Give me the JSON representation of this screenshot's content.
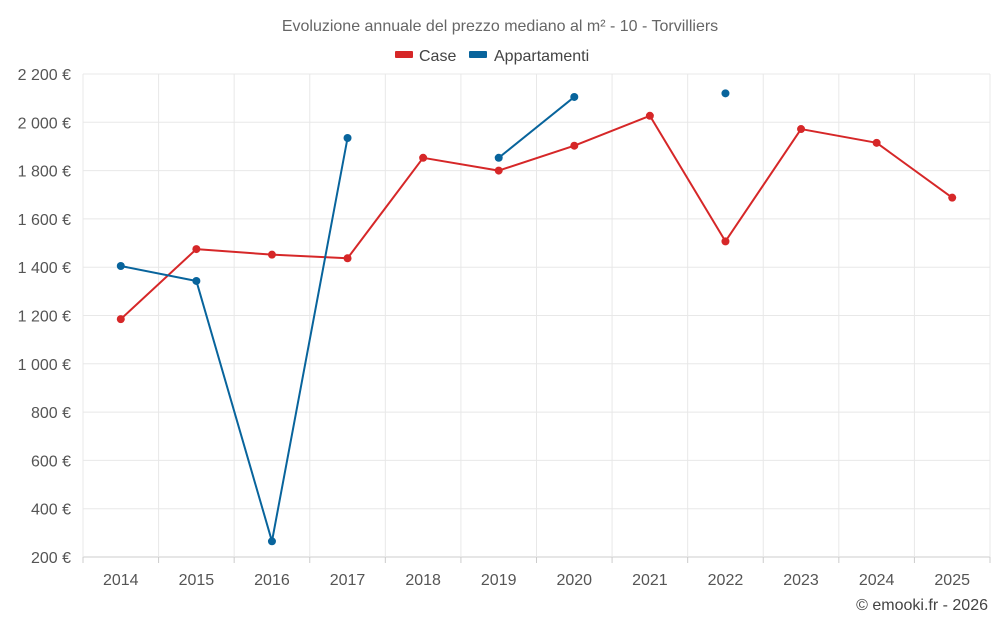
{
  "chart_data": {
    "type": "line",
    "title": "Evoluzione annuale del prezzo mediano al m² - 10 - Torvilliers",
    "categories": [
      "2014",
      "2015",
      "2016",
      "2017",
      "2018",
      "2019",
      "2020",
      "2021",
      "2022",
      "2023",
      "2024",
      "2025"
    ],
    "series": [
      {
        "name": "Case",
        "color": "#d62728",
        "values": [
          1185,
          1475,
          1452,
          1437,
          1853,
          1800,
          1903,
          2027,
          1507,
          1972,
          1915,
          1688
        ]
      },
      {
        "name": "Appartamenti",
        "color": "#08649c",
        "values": [
          1405,
          1343,
          265,
          1935,
          null,
          1853,
          2105,
          null,
          2120,
          null,
          null,
          null
        ]
      }
    ],
    "ylim": [
      200,
      2200
    ],
    "yticks": [
      200,
      400,
      600,
      800,
      1000,
      1200,
      1400,
      1600,
      1800,
      2000,
      2200
    ],
    "ytick_labels": [
      "200 €",
      "400 €",
      "600 €",
      "800 €",
      "1 000 €",
      "1 200 €",
      "1 400 €",
      "1 600 €",
      "1 800 €",
      "2 000 €",
      "2 200 €"
    ],
    "xlabel": "",
    "ylabel": "",
    "legend_position": "top-center",
    "grid": true
  },
  "credit": "© emooki.fr - 2026"
}
